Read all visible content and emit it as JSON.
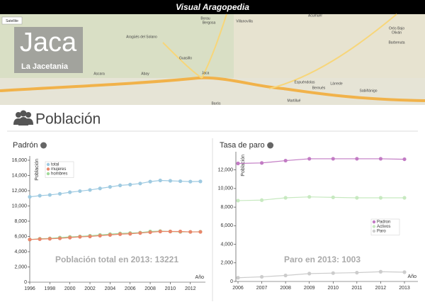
{
  "header": {
    "title": "Visual Aragopedia"
  },
  "map": {
    "button": "Satellite",
    "place": "Jaca",
    "region": "La Jacetania",
    "labels": [
      "Aragüés del Solano",
      "Borau",
      "Bergosa",
      "Villanovilla",
      "Acumuer",
      "Oliván",
      "Ascara",
      "Abay",
      "Guasillo",
      "Jaca",
      "Espuéndolas",
      "Bernués",
      "Martillué",
      "Sabiñánigo",
      "Barbenuta",
      "Orós Bajo",
      "Barós",
      "Lárrede"
    ]
  },
  "section": {
    "title": "Población"
  },
  "chart_data": [
    {
      "type": "line",
      "title": "Padrón",
      "x_label": "Año",
      "y_label": "Población",
      "annotation": "Población total en 2013: 13221",
      "x": [
        1996,
        1997,
        1998,
        1999,
        2000,
        2001,
        2002,
        2003,
        2004,
        2005,
        2006,
        2007,
        2008,
        2009,
        2010,
        2011,
        2012,
        2013
      ],
      "xlim": [
        1996,
        2013.5
      ],
      "xticks": [
        1996,
        1998,
        2000,
        2002,
        2004,
        2006,
        2008,
        2010,
        2012
      ],
      "ylim": [
        0,
        16000
      ],
      "yticks": [
        0,
        {
          "value": 2000,
          "label": "2,000"
        },
        {
          "value": 4000,
          "label": "4,000"
        },
        {
          "value": 6000,
          "label": "6,000"
        },
        {
          "value": 8000,
          "label": "8,000"
        },
        {
          "value": 10000,
          "label": "10,000"
        },
        {
          "value": 12000,
          "label": "12,000"
        },
        {
          "value": 14000,
          "label": "14,000"
        },
        {
          "value": 16000,
          "label": "16,000"
        }
      ],
      "series": [
        {
          "name": "total",
          "color": "#9ecae1",
          "values": [
            11200,
            11350,
            11450,
            11600,
            11800,
            11950,
            12100,
            12300,
            12500,
            12700,
            12800,
            12950,
            13200,
            13350,
            13300,
            13250,
            13200,
            13221
          ]
        },
        {
          "name": "mujeres",
          "color": "#e9866a",
          "values": [
            5600,
            5650,
            5700,
            5750,
            5850,
            5950,
            6000,
            6100,
            6200,
            6300,
            6350,
            6450,
            6550,
            6650,
            6650,
            6650,
            6600,
            6600
          ]
        },
        {
          "name": "hombres",
          "color": "#a1d99b",
          "values": [
            5600,
            5700,
            5750,
            5850,
            5950,
            6000,
            6100,
            6200,
            6300,
            6400,
            6450,
            6500,
            6650,
            6700,
            6650,
            6600,
            6600,
            6621
          ]
        }
      ]
    },
    {
      "type": "line",
      "title": "Tasa de paro",
      "x_label": "Año",
      "y_label": "Población",
      "annotation": "Paro en 2013: 1003",
      "x": [
        2006,
        2007,
        2008,
        2009,
        2010,
        2011,
        2012,
        2013
      ],
      "xlim": [
        2006,
        2013
      ],
      "xticks": [
        2006,
        2007,
        2008,
        2009,
        2010,
        2011,
        2012,
        2013
      ],
      "ylim": [
        0,
        13500
      ],
      "yticks": [
        0,
        {
          "value": 2000,
          "label": "2,000"
        },
        {
          "value": 4000,
          "label": "4,000"
        },
        {
          "value": 6000,
          "label": "6,000"
        },
        {
          "value": 8000,
          "label": "8,000"
        },
        {
          "value": 10000,
          "label": "10,000"
        },
        {
          "value": 12000,
          "label": "12,000"
        }
      ],
      "series": [
        {
          "name": "Padron",
          "color": "#c27bc4",
          "values": [
            12700,
            12750,
            13000,
            13200,
            13200,
            13200,
            13200,
            13150
          ]
        },
        {
          "name": "Activos",
          "color": "#c7e9c0",
          "values": [
            8700,
            8750,
            9000,
            9100,
            9050,
            9000,
            9000,
            9000
          ]
        },
        {
          "name": "Paro",
          "color": "#cccccc",
          "values": [
            400,
            500,
            650,
            850,
            900,
            950,
            1050,
            1003
          ]
        }
      ]
    }
  ]
}
